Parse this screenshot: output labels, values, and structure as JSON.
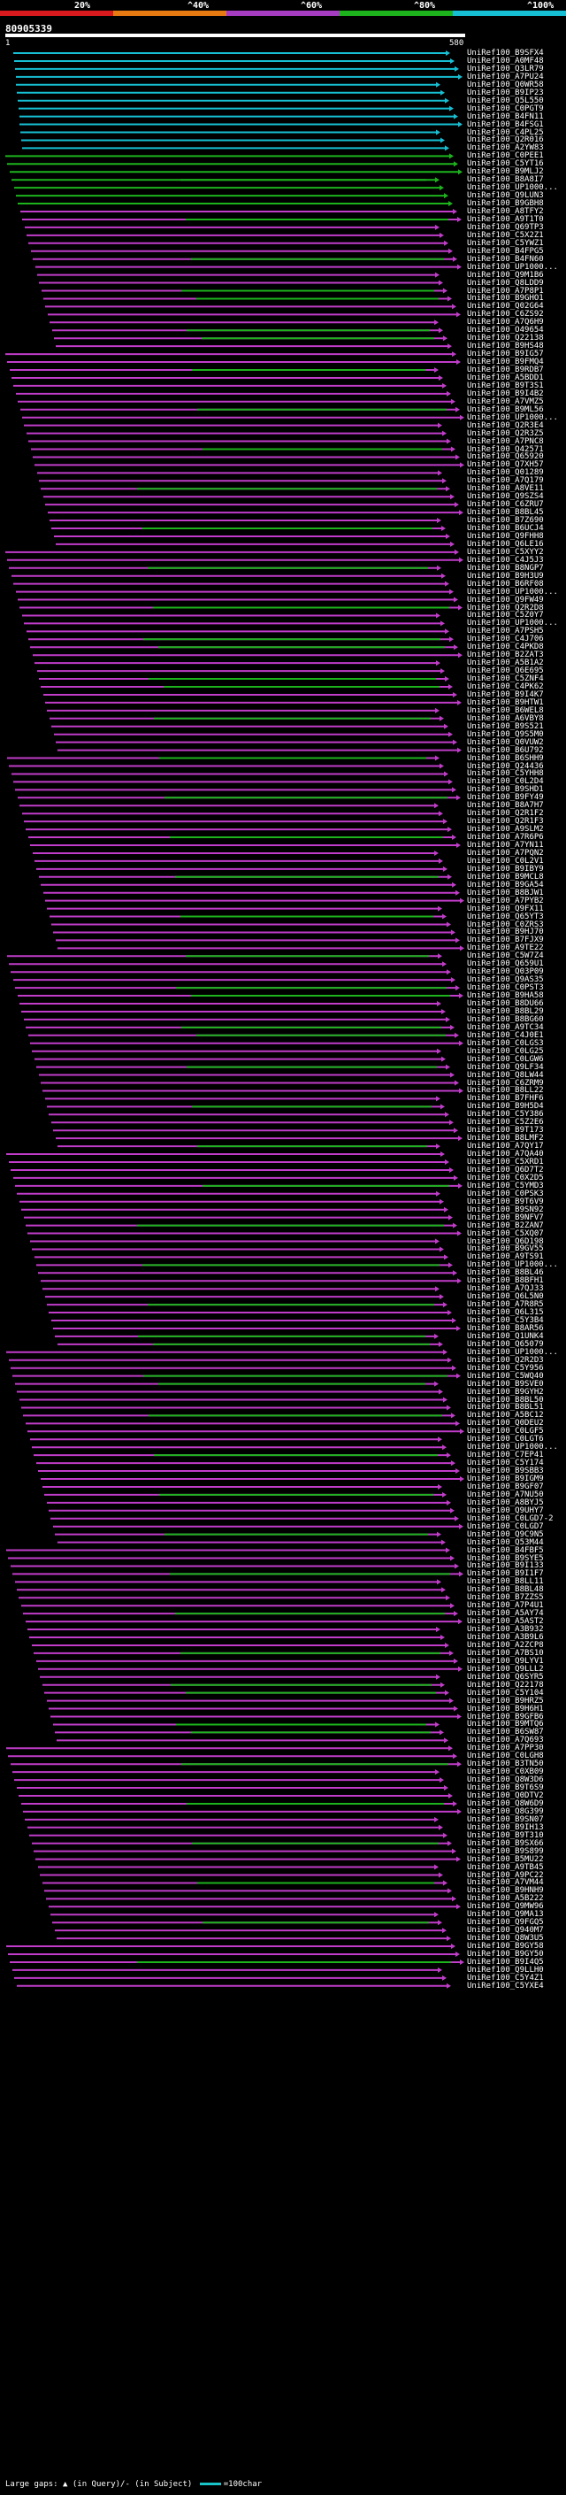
{
  "legend": {
    "ranges": [
      {
        "label": "20%",
        "color": "#d8191d"
      },
      {
        "label": "^40%",
        "color": "#e87a12"
      },
      {
        "label": "^60%",
        "color": "#a63cc1"
      },
      {
        "label": "^80%",
        "color": "#1db31d"
      },
      {
        "label": "^100%",
        "color": "#16bfd3"
      }
    ]
  },
  "query": {
    "id": "80905339",
    "start": "1",
    "end": "580"
  },
  "colors": {
    "identity_100": "#16bfd3",
    "identity_80": "#1db31d",
    "identity_60": "#c03cc9",
    "identity_40": "#e87a12",
    "background": "#000000",
    "text": "#ffffff"
  },
  "hits": [
    "UniRef100_B9SFX4",
    "UniRef100_A0MF48",
    "UniRef100_Q3LR79",
    "UniRef100_A7PU24",
    "UniRef100_Q0WR58",
    "UniRef100_B9IP23",
    "UniRef100_Q5L550",
    "UniRef100_C0PGT9",
    "UniRef100_B4FN11",
    "UniRef100_B4FSG1",
    "UniRef100_C4PL25",
    "UniRef100_Q2R016",
    "UniRef100_A2YW83",
    "UniRef100_C0PEE1",
    "UniRef100_C5YT16",
    "UniRef100_B9MLJ2",
    "UniRef100_B8A8I7",
    "UniRef100_UP1000...",
    "UniRef100_Q9LUN3",
    "UniRef100_B9GBH8",
    "UniRef100_A8TFY2",
    "UniRef100_A9T1T0",
    "UniRef100_Q69TP3",
    "UniRef100_C5X2Z1",
    "UniRef100_C5YWZ1",
    "UniRef100_B4FPG5",
    "UniRef100_B4FN60",
    "UniRef100_UP1000...",
    "UniRef100_Q9M1B6",
    "UniRef100_Q8LDD9",
    "UniRef100_A7P8P1",
    "UniRef100_B9GHO1",
    "UniRef100_Q02G64",
    "UniRef100_C6ZS92",
    "UniRef100_A7Q6H9",
    "UniRef100_O49654",
    "UniRef100_Q22138",
    "UniRef100_B9HS48",
    "UniRef100_B9IG57",
    "UniRef100_B9FMQ4",
    "UniRef100_B9RDB7",
    "UniRef100_A5BDD1",
    "UniRef100_B9T3S1",
    "UniRef100_B9I4B2",
    "UniRef100_A7VMZ5",
    "UniRef100_B9ML56",
    "UniRef100_UP1000...",
    "UniRef100_Q2R3E4",
    "UniRef100_Q2R3Z5",
    "UniRef100_A7PNC8",
    "UniRef100_Q42571",
    "UniRef100_Q65920",
    "UniRef100_Q7XH57",
    "UniRef100_Q01289",
    "UniRef100_A7Q179",
    "UniRef100_A8VE11",
    "UniRef100_Q9SZS4",
    "UniRef100_C6ZRU7",
    "UniRef100_B8BL45",
    "UniRef100_B7Z690",
    "UniRef100_B6UCJ4",
    "UniRef100_Q9FHH8",
    "UniRef100_Q6LE16",
    "UniRef100_C5XYY2",
    "UniRef100_C4J5J3",
    "UniRef100_B8NGP7",
    "UniRef100_B9H3U9",
    "UniRef100_B6RF08",
    "UniRef100_UP1000...",
    "UniRef100_Q9FW49",
    "UniRef100_Q2R2D8",
    "UniRef100_C5Z0Y7",
    "UniRef100_UP1000...",
    "UniRef100_A7PSH5",
    "UniRef100_C4J706",
    "UniRef100_C4PKD8",
    "UniRef100_B2ZAT3",
    "UniRef100_A5B1A2",
    "UniRef100_Q6E695",
    "UniRef100_C5ZNF4",
    "UniRef100_C4PK62",
    "UniRef100_B9I4K7",
    "UniRef100_B9HTW1",
    "UniRef100_B6WEL8",
    "UniRef100_A6VBY8",
    "UniRef100_B9S521",
    "UniRef100_Q9S5M0",
    "UniRef100_Q0VUW2",
    "UniRef100_B6U792",
    "UniRef100_B6SHH9",
    "UniRef100_Q24436",
    "UniRef100_C5YHH8",
    "UniRef100_C0L2D4",
    "UniRef100_B9SHD1",
    "UniRef100_B9FY49",
    "UniRef100_B8A7H7",
    "UniRef100_Q2R1F2",
    "UniRef100_Q2R1F3",
    "UniRef100_A9SLM2",
    "UniRef100_A7R6P6",
    "UniRef100_A7YN11",
    "UniRef100_A7PQN2",
    "UniRef100_C0L2V1",
    "UniRef100_B9IBY9",
    "UniRef100_B9MCL8",
    "UniRef100_B9GA54",
    "UniRef100_B8BJW1",
    "UniRef100_A7PYB2",
    "UniRef100_Q9FX11",
    "UniRef100_Q65YT3",
    "UniRef100_C0ZRS3",
    "UniRef100_B9HJ70",
    "UniRef100_B7FJX9",
    "UniRef100_A9TE22",
    "UniRef100_C5W7Z4",
    "UniRef100_Q659U1",
    "UniRef100_Q03P09",
    "UniRef100_Q9AS35",
    "UniRef100_C0PST3",
    "UniRef100_B9HA58",
    "UniRef100_B8DU66",
    "UniRef100_B8BL29",
    "UniRef100_B8BG60",
    "UniRef100_A9TC34",
    "UniRef100_C4J0E1",
    "UniRef100_C0LGS3",
    "UniRef100_C0LG25",
    "UniRef100_C0LGW6",
    "UniRef100_Q9LF34",
    "UniRef100_Q8LW44",
    "UniRef100_C6ZRM9",
    "UniRef100_B8LL22",
    "UniRef100_B7FHF6",
    "UniRef100_B9H5D4",
    "UniRef100_C5Y386",
    "UniRef100_C5Z2E6",
    "UniRef100_B9T173",
    "UniRef100_B8LMF2",
    "UniRef100_A7QY17",
    "UniRef100_A7QA40",
    "UniRef100_C5XRD1",
    "UniRef100_Q6D7T2",
    "UniRef100_C0X2D5",
    "UniRef100_C5YMD3",
    "UniRef100_C0PSK3",
    "UniRef100_B9T6V9",
    "UniRef100_B9SN92",
    "UniRef100_B9NFV7",
    "UniRef100_B2ZAN7",
    "UniRef100_C5XQ07",
    "UniRef100_Q6D198",
    "UniRef100_B9GV55",
    "UniRef100_A9TS91",
    "UniRef100_UP1000...",
    "UniRef100_B8BL46",
    "UniRef100_B8BFH1",
    "UniRef100_A7QJ33",
    "UniRef100_Q6L5N0",
    "UniRef100_A7R8R5",
    "UniRef100_Q6L315",
    "UniRef100_C5Y3B4",
    "UniRef100_B8AR56",
    "UniRef100_Q1UNK4",
    "UniRef100_Q65079",
    "UniRef100_UP1000...",
    "UniRef100_Q2R2D3",
    "UniRef100_C5Y956",
    "UniRef100_C5WQ40",
    "UniRef100_B9SVE0",
    "UniRef100_B9GYH2",
    "UniRef100_B8BL50",
    "UniRef100_B8BL51",
    "UniRef100_A5BC12",
    "UniRef100_Q0DEU2",
    "UniRef100_C0LGF5",
    "UniRef100_C0LGT6",
    "UniRef100_UP1000...",
    "UniRef100_C7EP41",
    "UniRef100_C5Y174",
    "UniRef100_B9SBB3",
    "UniRef100_B9IGM9",
    "UniRef100_B9GF07",
    "UniRef100_A7NU50",
    "UniRef100_A8BYJ5",
    "UniRef100_Q9UHY7",
    "UniRef100_C0LGD7-2",
    "UniRef100_C0LGD7",
    "UniRef100_Q9C9N5",
    "UniRef100_Q53M44",
    "UniRef100_B4FBF5",
    "UniRef100_B9SYE5",
    "UniRef100_B9I133",
    "UniRef100_B9I1F7",
    "UniRef100_B8LL11",
    "UniRef100_B8BL48",
    "UniRef100_B7ZZS5",
    "UniRef100_A7P4U1",
    "UniRef100_A5AY74",
    "UniRef100_A5AST2",
    "UniRef100_A3B932",
    "UniRef100_A3B9L6",
    "UniRef100_A2ZCP8",
    "UniRef100_A7BS10",
    "UniRef100_Q9LYV1",
    "UniRef100_Q9LLL2",
    "UniRef100_Q6SYR5",
    "UniRef100_Q22178",
    "UniRef100_C5Y104",
    "UniRef100_B9HRZ5",
    "UniRef100_B9H6H1",
    "UniRef100_B9GFB6",
    "UniRef100_B9MTQ6",
    "UniRef100_B6SW87",
    "UniRef100_A7Q693",
    "UniRef100_A7PP30",
    "UniRef100_C0LGH8",
    "UniRef100_B3TN50",
    "UniRef100_C0XB09",
    "UniRef100_Q8W3D6",
    "UniRef100_B9T6S9",
    "UniRef100_Q0DTV2",
    "UniRef100_Q8W6D9",
    "UniRef100_Q8G399",
    "UniRef100_B9SN07",
    "UniRef100_B9IH13",
    "UniRef100_B9T310",
    "UniRef100_B9SX66",
    "UniRef100_B9S899",
    "UniRef100_B5MU22",
    "UniRef100_A9TB45",
    "UniRef100_A9PC22",
    "UniRef100_A7VM44",
    "UniRef100_B9HNH9",
    "UniRef100_A5B222",
    "UniRef100_Q9MW96",
    "UniRef100_Q9MA13",
    "UniRef100_Q9FGQ5",
    "UniRef100_Q940M7",
    "UniRef100_Q8W3U5",
    "UniRef100_B9GY58",
    "UniRef100_B9GY50",
    "UniRef100_B9I4Q5",
    "UniRef100_Q9LLH0",
    "UniRef100_C5Y4Z1",
    "UniRef100_C5YXE4"
  ],
  "footer": {
    "gaps_text": "Large gaps: ▲ (in Query)/- (in Subject)",
    "indicator_text": "=100char"
  }
}
